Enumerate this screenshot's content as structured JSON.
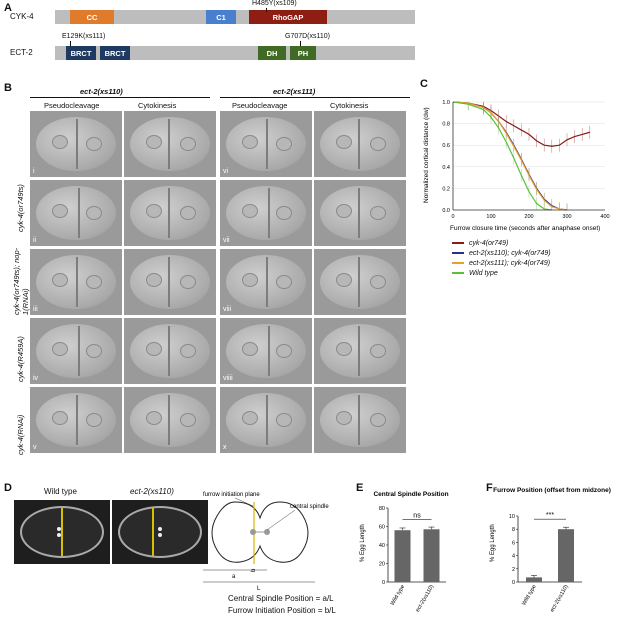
{
  "panelA": {
    "letter": "A",
    "cyk4": {
      "name": "CYK-4",
      "domains": [
        "CC",
        "C1",
        "RhoGAP"
      ],
      "mutation": "H485Y(xs109)"
    },
    "ect2": {
      "name": "ECT-2",
      "domains": [
        "BRCT",
        "BRCT",
        "DH",
        "PH"
      ],
      "mutation_left": "E129K(xs111)",
      "mutation_right": "G707D(xs110)"
    },
    "colors": {
      "CC": "#e07b2c",
      "C1": "#4a7fd0",
      "RhoGAP": "#8f1e12",
      "BRCT": "#1f3a60",
      "DH": "#3f6b24",
      "PH": "#3f6b24"
    }
  },
  "panelB": {
    "letter": "B",
    "groups": [
      "ect-2(xs110)",
      "ect-2(xs111)"
    ],
    "columns": [
      "Pseudocleavage",
      "Cytokinesis",
      "Pseudocleavage",
      "Cytokinesis"
    ],
    "rows": [
      "cyk-4(or749ts)",
      "cyk-4(or749ts); nop-1(RNAi)",
      "cyk-4(R459A)",
      "cyk-4(RNAi)"
    ],
    "numerals_left": [
      "i",
      "ii",
      "iii",
      "iv",
      "v"
    ],
    "numerals_right": [
      "vi",
      "vii",
      "viii",
      "viiii",
      "x"
    ]
  },
  "panelC": {
    "letter": "C",
    "chart_data": {
      "type": "line",
      "xlabel": "Furrow closure time (seconds after anaphase onset)",
      "ylabel": "Normalized cortical distance (dw)",
      "xlim": [
        0,
        400
      ],
      "ylim": [
        0,
        1.0
      ],
      "xticks": [
        "0",
        "100",
        "200",
        "300",
        "400"
      ],
      "yticks": [
        "0.0",
        "0.2",
        "0.4",
        "0.6",
        "0.8",
        "1.0"
      ],
      "series": [
        {
          "name": "cyk-4(or749)",
          "color": "#8b1a1a",
          "x": [
            0,
            40,
            80,
            100,
            120,
            140,
            160,
            180,
            200,
            220,
            240,
            260,
            280,
            300,
            320,
            340,
            360
          ],
          "y": [
            1.0,
            0.99,
            0.96,
            0.92,
            0.87,
            0.82,
            0.78,
            0.74,
            0.7,
            0.64,
            0.6,
            0.59,
            0.6,
            0.65,
            0.68,
            0.7,
            0.72
          ]
        },
        {
          "name": "ect-2(xs110); cyk-4(or749)",
          "color": "#2c2f8a",
          "x": [
            0,
            40,
            80,
            100,
            120,
            140,
            160,
            180,
            200,
            220,
            240,
            260,
            280,
            300
          ],
          "y": [
            1.0,
            0.99,
            0.95,
            0.9,
            0.82,
            0.72,
            0.6,
            0.47,
            0.33,
            0.2,
            0.1,
            0.04,
            0.01,
            0.0
          ]
        },
        {
          "name": "ect-2(xs111); cyk-4(or749)",
          "color": "#e8a02a",
          "x": [
            0,
            40,
            80,
            100,
            120,
            140,
            160,
            180,
            200,
            220,
            240,
            260,
            280,
            300
          ],
          "y": [
            1.0,
            0.99,
            0.95,
            0.9,
            0.82,
            0.71,
            0.59,
            0.46,
            0.32,
            0.19,
            0.09,
            0.03,
            0.01,
            0.0
          ]
        },
        {
          "name": "Wild type",
          "color": "#5cbf3a",
          "x": [
            0,
            40,
            80,
            100,
            120,
            140,
            160,
            180,
            200,
            220,
            240,
            260
          ],
          "y": [
            1.0,
            0.98,
            0.93,
            0.86,
            0.76,
            0.63,
            0.48,
            0.32,
            0.17,
            0.06,
            0.01,
            0.0
          ]
        }
      ]
    }
  },
  "panelD": {
    "letter": "D",
    "titles": [
      "Wild type",
      "ect-2(xs110)"
    ],
    "schematic_labels": {
      "plane": "furrow initiation plane",
      "spindle": "central spindle",
      "a": "a",
      "b": "b",
      "L": "L"
    },
    "formula1": "Central Spindle Position = a/L",
    "formula2": "Furrow Initiation Position = b/L"
  },
  "panelE": {
    "letter": "E",
    "chart_data": {
      "type": "bar",
      "title": "Central Spindle Position",
      "ylabel": "% Egg Length",
      "categories": [
        "Wild type",
        "ect-2(xs110)"
      ],
      "values": [
        56,
        57
      ],
      "ylim": [
        0,
        80
      ],
      "yticks": [
        "0",
        "20",
        "40",
        "60",
        "80"
      ],
      "annotation": "ns"
    }
  },
  "panelF": {
    "letter": "F",
    "chart_data": {
      "type": "bar",
      "title": "Furrow Position (offset from midzone)",
      "ylabel": "% Egg Length",
      "categories": [
        "Wild type",
        "ect-2(xs110)"
      ],
      "values": [
        0.7,
        8.0
      ],
      "ylim": [
        0,
        10
      ],
      "yticks": [
        "0",
        "2",
        "4",
        "6",
        "8",
        "10"
      ],
      "annotation": "***"
    }
  }
}
